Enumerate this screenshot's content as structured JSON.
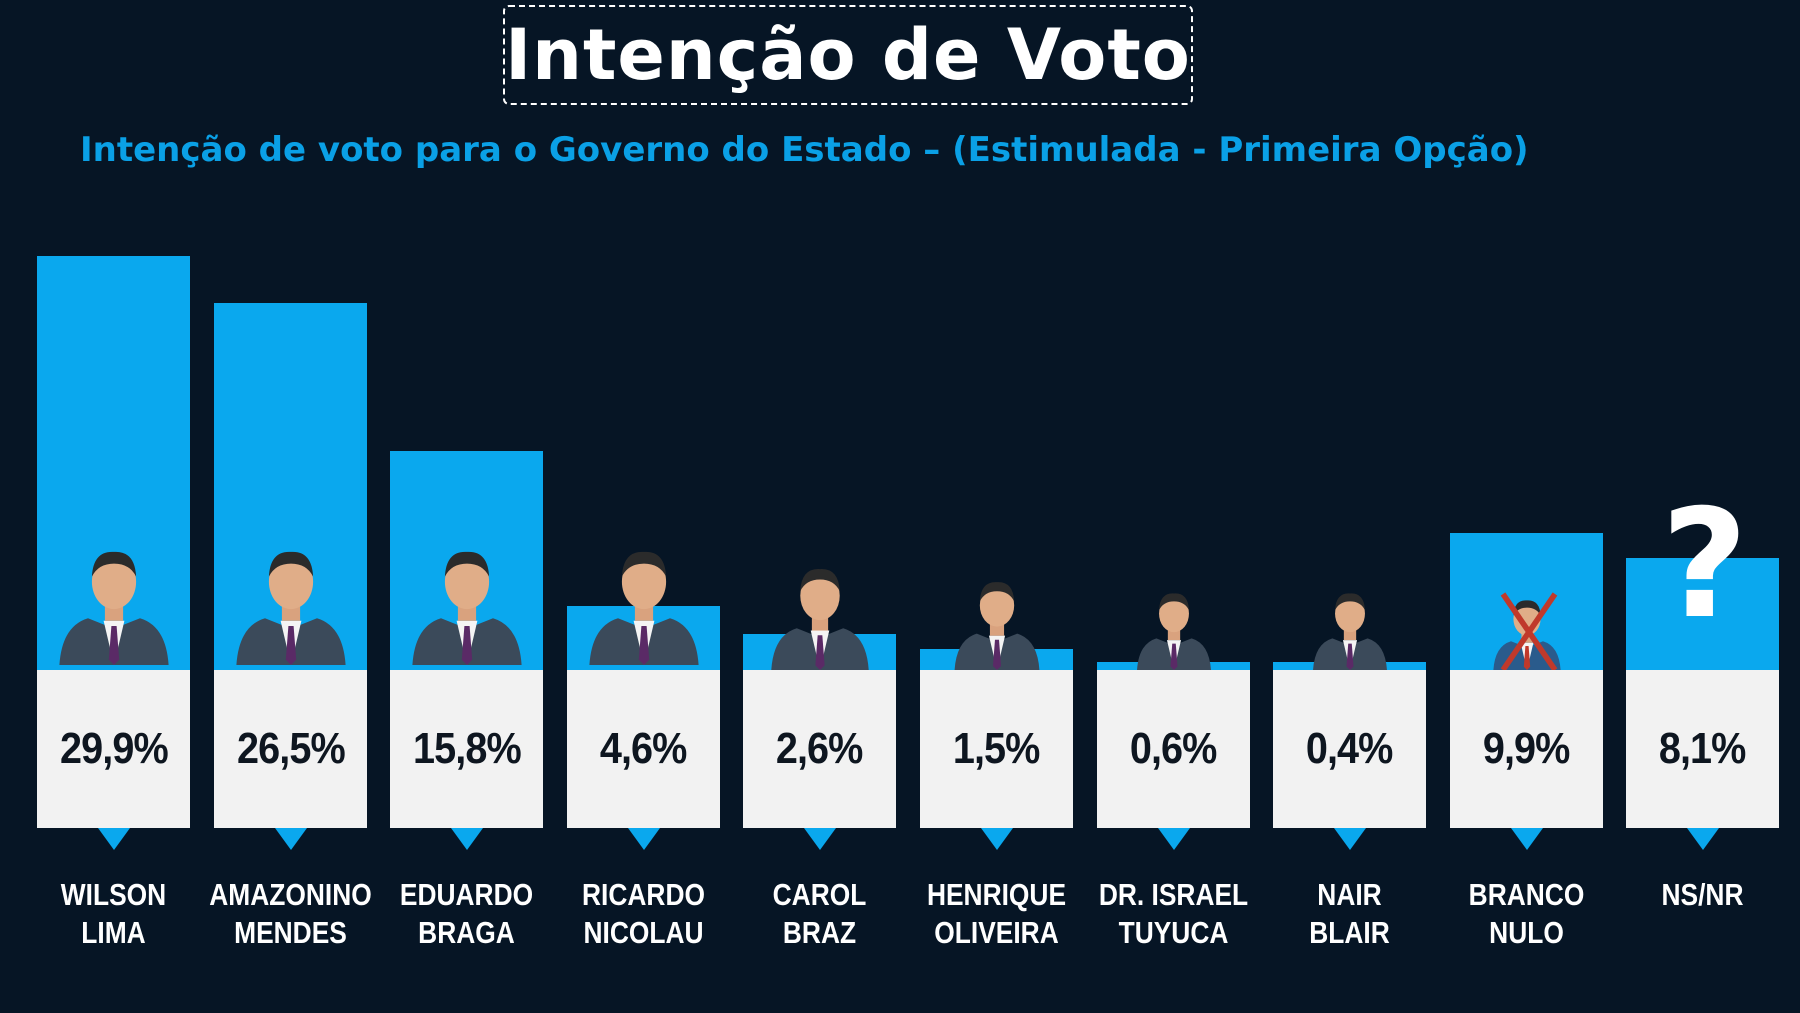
{
  "chart_data": {
    "type": "bar",
    "title": "Intenção de Voto",
    "subtitle": "Intenção de voto para o Governo do Estado – (Estimulada - Primeira Opção)",
    "categories": [
      [
        "WILSON",
        "LIMA"
      ],
      [
        "AMAZONINO",
        "MENDES"
      ],
      [
        "EDUARDO",
        "BRAGA"
      ],
      [
        "RICARDO",
        "NICOLAU"
      ],
      [
        "CAROL",
        "BRAZ"
      ],
      [
        "HENRIQUE",
        "OLIVEIRA"
      ],
      [
        "DR. ISRAEL",
        "TUYUCA"
      ],
      [
        "NAIR",
        "BLAIR"
      ],
      [
        "BRANCO",
        "NULO"
      ],
      [
        "NS/NR"
      ]
    ],
    "values": [
      29.9,
      26.5,
      15.8,
      4.6,
      2.6,
      1.5,
      0.6,
      0.4,
      9.9,
      8.1
    ],
    "value_labels": [
      "29,9%",
      "26,5%",
      "15,8%",
      "4,6%",
      "2,6%",
      "1,5%",
      "0,6%",
      "0,4%",
      "9,9%",
      "8,1%"
    ],
    "icons": [
      "candidate-photo",
      "candidate-photo",
      "candidate-photo",
      "candidate-photo",
      "candidate-photo",
      "candidate-photo",
      "candidate-photo",
      "candidate-photo",
      "crossed-person-icon",
      "question-mark-icon"
    ],
    "bar_color": "#0aa8ee",
    "card_color": "#f2f2f2",
    "background_color": "#061525",
    "ylim": [
      0,
      30
    ],
    "grid": false,
    "legend": "none"
  },
  "qmark": "?"
}
